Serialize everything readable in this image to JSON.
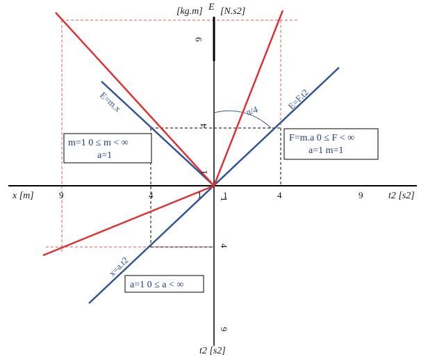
{
  "axes": {
    "top_left_unit": "[kg.m]",
    "top_right_unit": "[N.s2]",
    "top_symbol": "E",
    "left_label": "x [m]",
    "right_label": "t2 [s2]",
    "bottom_label": "t2 [s2]"
  },
  "ticks": {
    "top_9": "9",
    "top_4": "4",
    "top_1": "1",
    "left_9": "9",
    "left_4": "4",
    "left_1": "1",
    "right_1": "1",
    "right_4": "4",
    "right_9": "9",
    "bottom_1": "1",
    "bottom_4": "4",
    "bottom_9": "9"
  },
  "labels": {
    "angle": "π/4",
    "e_fa": "E=F.t2",
    "e_mx": "E=m.x",
    "x_at": "x=a.t2"
  },
  "boxes": {
    "left_top": {
      "line1": "m=1   0 ≤ m < ∞",
      "line2": "a=1"
    },
    "right_top": {
      "line1": "F=m.a   0 ≤ F < ∞",
      "line2": "a=1  m=1"
    },
    "bottom": {
      "line1": "a=1   0 ≤ a < ∞"
    }
  },
  "colors": {
    "blue_line": "#2f5597",
    "red_line": "#e03131",
    "axis": "#000000",
    "guide_red": "#e05a5a",
    "guide_black": "#000000"
  }
}
